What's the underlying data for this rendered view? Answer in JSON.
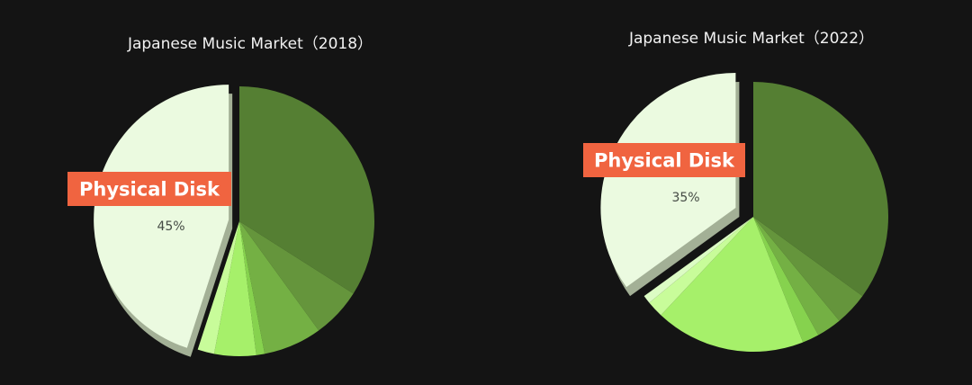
{
  "chart_data": [
    {
      "type": "pie",
      "title": "Japanese Music Market（2018）",
      "slices": [
        {
          "value": 34,
          "color": "#557f33"
        },
        {
          "value": 6,
          "color": "#65953c"
        },
        {
          "value": 7,
          "color": "#74b044"
        },
        {
          "value": 1,
          "color": "#86d24e"
        },
        {
          "value": 5,
          "color": "#a6f06a"
        },
        {
          "value": 2,
          "color": "#c8fc9a"
        },
        {
          "value": 45,
          "color": "#ebfae0",
          "label": "45%",
          "exploded": true,
          "callout": "Physical Disk"
        }
      ]
    },
    {
      "type": "pie",
      "title": "Japanese Music Market（2022）",
      "slices": [
        {
          "value": 35,
          "color": "#557f33"
        },
        {
          "value": 4,
          "color": "#65953c"
        },
        {
          "value": 3,
          "color": "#74b044"
        },
        {
          "value": 2,
          "color": "#86d24e"
        },
        {
          "value": 18,
          "color": "#a6f06a"
        },
        {
          "value": 2,
          "color": "#c8fc9a"
        },
        {
          "value": 1,
          "color": "#dcfcc4"
        },
        {
          "value": 35,
          "color": "#ebfae0",
          "label": "35%",
          "exploded": true,
          "callout": "Physical Disk"
        }
      ]
    }
  ],
  "colors": {
    "background": "#141414",
    "callout_bg": "#f06440",
    "shadow": "#a3b096"
  }
}
